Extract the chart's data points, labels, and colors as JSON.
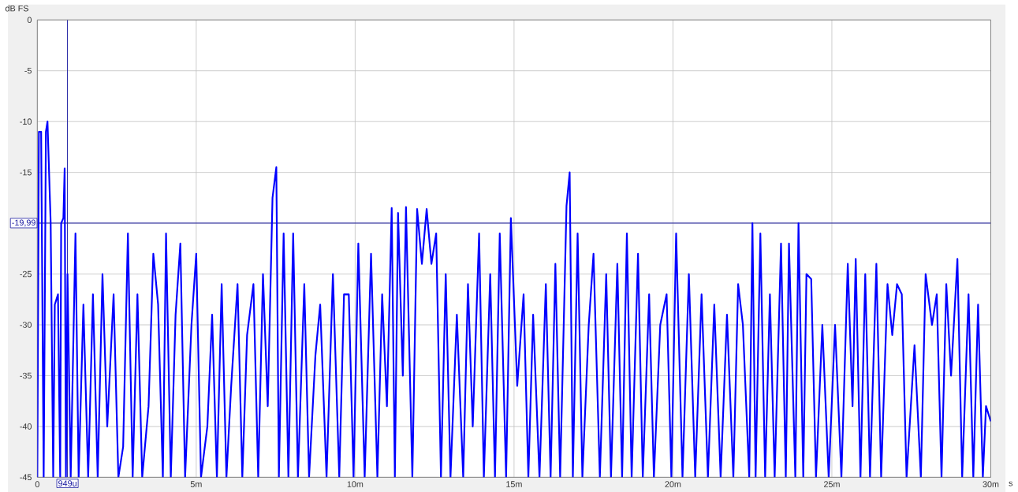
{
  "chart_data": {
    "type": "line",
    "xlabel": "s",
    "ylabel": "dB FS",
    "xlim": [
      0,
      30
    ],
    "ylim": [
      -45,
      0
    ],
    "xticks": [
      0,
      {
        "value": 5,
        "label": "5m"
      },
      {
        "value": 10,
        "label": "10m"
      },
      {
        "value": 15,
        "label": "15m"
      },
      {
        "value": 20,
        "label": "20m"
      },
      {
        "value": 25,
        "label": "25m"
      },
      {
        "value": 30,
        "label": "30m"
      }
    ],
    "yticks": [
      -45,
      -40,
      -35,
      -30,
      -25,
      {
        "value": -20,
        "label": null
      },
      -15,
      -10,
      -5,
      0
    ],
    "grid": true,
    "marker": "none",
    "line_style": "solid",
    "ref_lines": [
      {
        "axis": "y",
        "value": -19.99,
        "label": "-19,99",
        "color": "#1a1aa0"
      },
      {
        "axis": "x",
        "value": 0.949,
        "label": "949u",
        "color": "#1a1aa0"
      }
    ],
    "series": [
      {
        "color": "#0000ff",
        "x": [
          0,
          0.05,
          0.12,
          0.2,
          0.27,
          0.32,
          0.42,
          0.5,
          0.55,
          0.65,
          0.72,
          0.75,
          0.82,
          0.86,
          0.9,
          0.95,
          1.05,
          1.2,
          1.3,
          1.45,
          1.6,
          1.75,
          1.9,
          2.05,
          2.2,
          2.4,
          2.55,
          2.7,
          2.85,
          3.0,
          3.15,
          3.3,
          3.5,
          3.65,
          3.8,
          3.95,
          4.05,
          4.2,
          4.35,
          4.5,
          4.65,
          4.85,
          5.0,
          5.15,
          5.35,
          5.5,
          5.65,
          5.8,
          5.95,
          6.1,
          6.3,
          6.45,
          6.6,
          6.8,
          6.95,
          7.1,
          7.25,
          7.4,
          7.52,
          7.6,
          7.75,
          7.9,
          8.05,
          8.2,
          8.4,
          8.55,
          8.75,
          8.9,
          9.1,
          9.3,
          9.5,
          9.65,
          9.8,
          9.95,
          10.1,
          10.3,
          10.5,
          10.7,
          10.85,
          11.0,
          11.15,
          11.25,
          11.35,
          11.5,
          11.6,
          11.8,
          11.95,
          12.1,
          12.25,
          12.4,
          12.55,
          12.7,
          12.85,
          13.0,
          13.2,
          13.4,
          13.55,
          13.7,
          13.9,
          14.05,
          14.25,
          14.4,
          14.55,
          14.75,
          14.9,
          15.1,
          15.3,
          15.45,
          15.6,
          15.8,
          16.0,
          16.15,
          16.3,
          16.45,
          16.65,
          16.75,
          16.85,
          17.0,
          17.15,
          17.35,
          17.5,
          17.7,
          17.9,
          18.05,
          18.25,
          18.4,
          18.55,
          18.7,
          18.9,
          19.05,
          19.25,
          19.4,
          19.6,
          19.8,
          19.95,
          20.1,
          20.3,
          20.5,
          20.7,
          20.9,
          21.1,
          21.3,
          21.5,
          21.7,
          21.9,
          22.05,
          22.2,
          22.4,
          22.5,
          22.6,
          22.75,
          22.9,
          23.05,
          23.2,
          23.4,
          23.55,
          23.65,
          23.85,
          23.95,
          24.1,
          24.2,
          24.35,
          24.5,
          24.7,
          24.9,
          25.1,
          25.3,
          25.5,
          25.65,
          25.75,
          25.9,
          26.05,
          26.2,
          26.4,
          26.55,
          26.75,
          26.9,
          27.05,
          27.2,
          27.35,
          27.6,
          27.8,
          27.95,
          28.15,
          28.3,
          28.45,
          28.6,
          28.75,
          28.95,
          29.1,
          29.3,
          29.45,
          29.6,
          29.75,
          29.85,
          30
        ],
        "values": [
          -45,
          -11,
          -11,
          -45,
          -11,
          -10,
          -20,
          -45,
          -28,
          -27,
          -45,
          -20,
          -19.5,
          -14.6,
          -45,
          -25,
          -45,
          -21,
          -45,
          -28,
          -45,
          -27,
          -45,
          -25,
          -40,
          -27,
          -45,
          -42,
          -21,
          -45,
          -27,
          -45,
          -38,
          -23,
          -28,
          -45,
          -21,
          -45,
          -29,
          -22,
          -45,
          -30,
          -23,
          -45,
          -40,
          -29,
          -45,
          -26,
          -45,
          -36,
          -26,
          -45,
          -31,
          -26,
          -45,
          -25,
          -38,
          -17.5,
          -14.5,
          -45,
          -21,
          -45,
          -21,
          -45,
          -26,
          -45,
          -33,
          -28,
          -45,
          -25,
          -45,
          -27,
          -27,
          -45,
          -22,
          -45,
          -23,
          -45,
          -27,
          -38,
          -18.5,
          -45,
          -19,
          -35,
          -18.4,
          -45,
          -18.6,
          -24,
          -18.6,
          -24,
          -21,
          -45,
          -25,
          -45,
          -29,
          -45,
          -26,
          -40,
          -21,
          -45,
          -25,
          -45,
          -21,
          -45,
          -19.5,
          -36,
          -27,
          -45,
          -29,
          -45,
          -26,
          -45,
          -24,
          -45,
          -18.3,
          -15,
          -45,
          -21,
          -45,
          -30,
          -23,
          -45,
          -25,
          -45,
          -24,
          -45,
          -21,
          -45,
          -23,
          -45,
          -27,
          -45,
          -30,
          -27,
          -45,
          -21,
          -45,
          -25,
          -45,
          -27,
          -45,
          -28,
          -45,
          -29,
          -45,
          -26,
          -30,
          -45,
          -20,
          -45,
          -21,
          -45,
          -27,
          -45,
          -22,
          -45,
          -22,
          -45,
          -20,
          -45,
          -25,
          -25.5,
          -45,
          -30,
          -45,
          -30,
          -45,
          -24,
          -38,
          -23.5,
          -45,
          -25,
          -45,
          -24,
          -45,
          -26,
          -31,
          -26,
          -27,
          -45,
          -32,
          -45,
          -25,
          -30,
          -27,
          -45,
          -26,
          -35,
          -23.5,
          -45,
          -27,
          -45,
          -28,
          -45,
          -38,
          -39.5
        ]
      }
    ]
  }
}
